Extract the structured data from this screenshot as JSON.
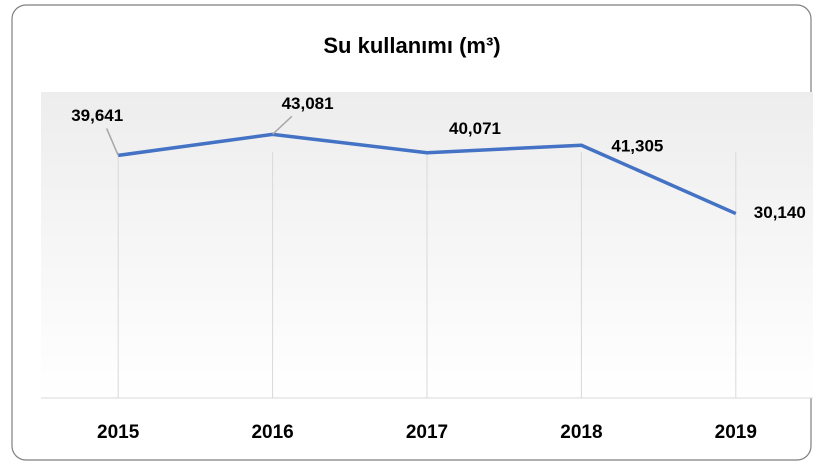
{
  "chart_data": {
    "type": "line",
    "title": "Su kullanımı (m³)",
    "categories": [
      "2015",
      "2016",
      "2017",
      "2018",
      "2019"
    ],
    "series": [
      {
        "name": "Su kullanımı",
        "color": "#4472c4",
        "values": [
          39641,
          43081,
          40071,
          41305,
          30140
        ],
        "value_labels": [
          "39,641",
          "43,081",
          "40,071",
          "41,305",
          "30,140"
        ]
      }
    ],
    "ylim": [
      0,
      50000
    ],
    "grid": true
  }
}
